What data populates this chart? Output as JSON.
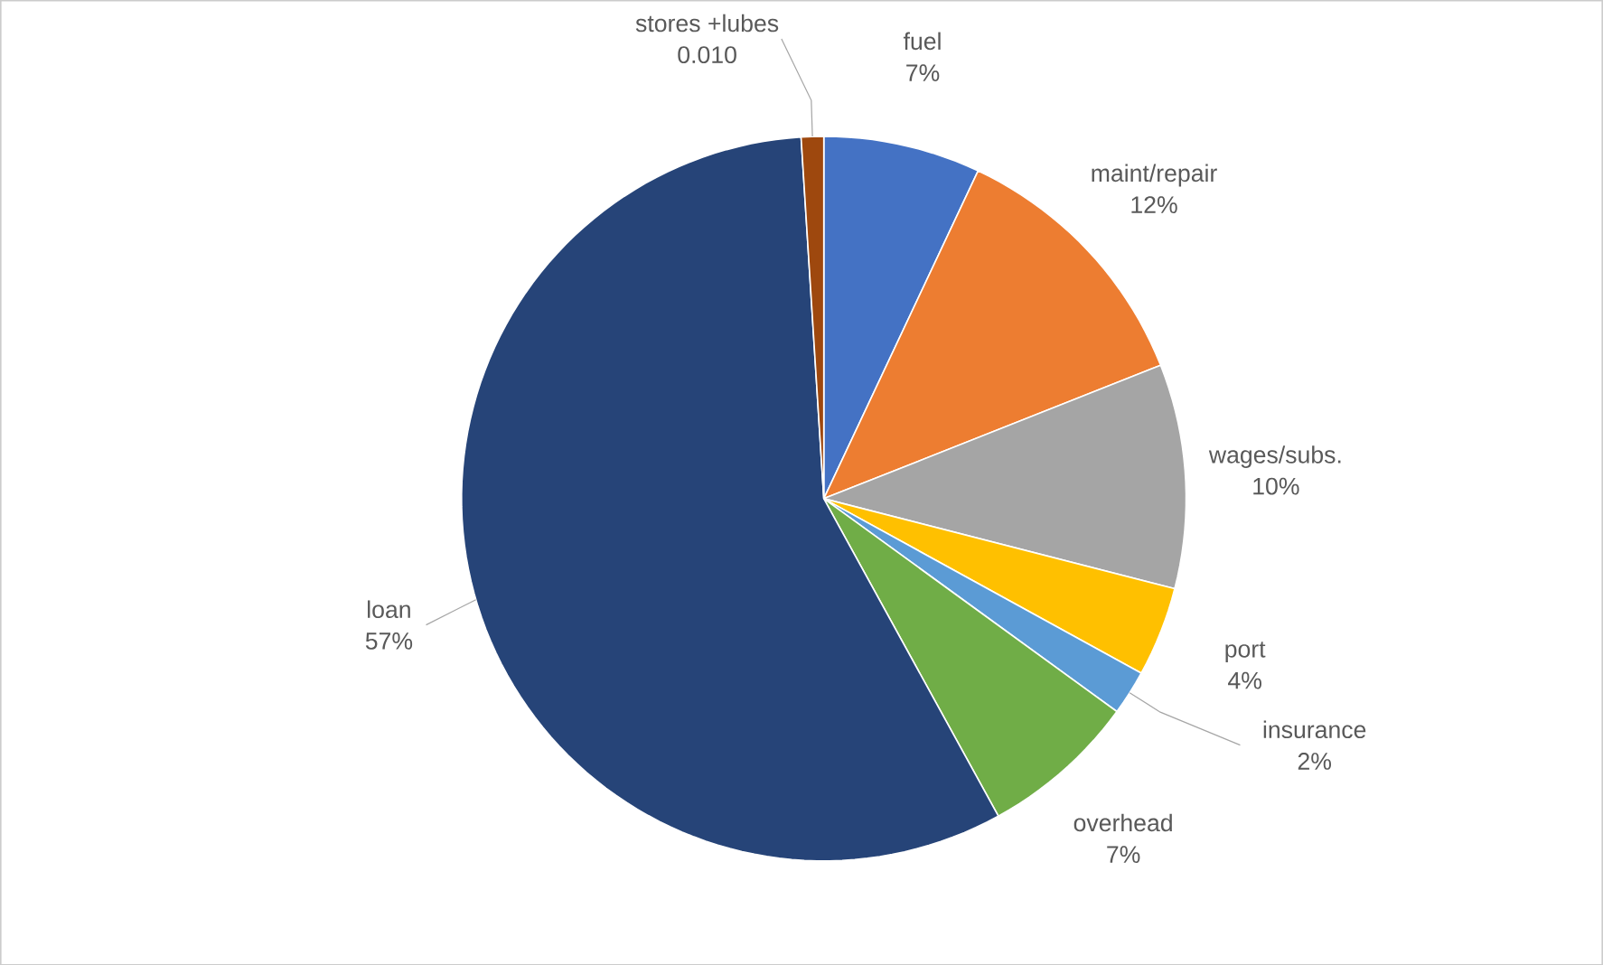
{
  "chart_data": {
    "type": "pie",
    "categories": [
      "fuel",
      "maint/repair",
      "wages/subs.",
      "port",
      "insurance",
      "overhead",
      "loan",
      "stores +lubes"
    ],
    "values": [
      0.07,
      0.12,
      0.1,
      0.04,
      0.02,
      0.07,
      0.57,
      0.01
    ],
    "value_labels": [
      "7%",
      "12%",
      "10%",
      "4%",
      "2%",
      "7%",
      "57%",
      "0.010"
    ],
    "colors": [
      "#4472c4",
      "#ed7d31",
      "#a5a5a5",
      "#ffc000",
      "#5b9bd5",
      "#70ad47",
      "#264478",
      "#9e480e"
    ]
  }
}
